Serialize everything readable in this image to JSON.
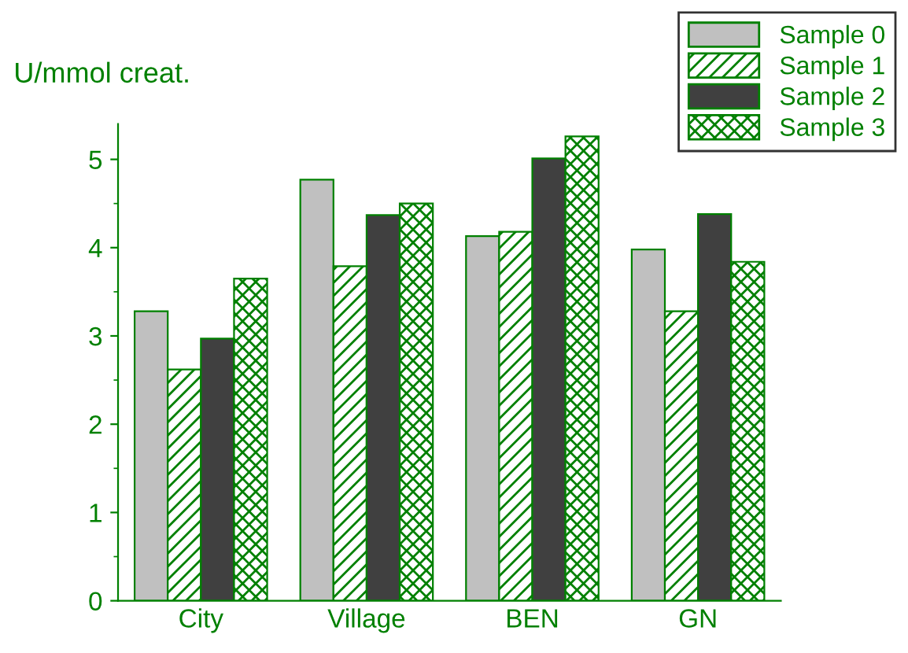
{
  "chart_data": {
    "type": "bar",
    "ylabel": "U/mmol creat.",
    "categories": [
      "City",
      "Village",
      "BEN",
      "GN"
    ],
    "series": [
      {
        "name": "Sample 0",
        "color": "#c0c0c0",
        "values": [
          3.28,
          4.77,
          4.13,
          3.98
        ]
      },
      {
        "name": "Sample 1",
        "color": "#008000",
        "values": [
          2.62,
          3.79,
          4.18,
          3.28
        ]
      },
      {
        "name": "Sample 2",
        "color": "#404040",
        "values": [
          2.97,
          4.37,
          5.01,
          4.38
        ]
      },
      {
        "name": "Sample 3",
        "color": "#008000",
        "values": [
          3.65,
          4.5,
          5.26,
          3.84
        ]
      }
    ],
    "ylim": [
      0,
      5.4
    ],
    "yticks": [
      0,
      1,
      2,
      3,
      4,
      5
    ],
    "grid": false,
    "legend": "top right"
  }
}
